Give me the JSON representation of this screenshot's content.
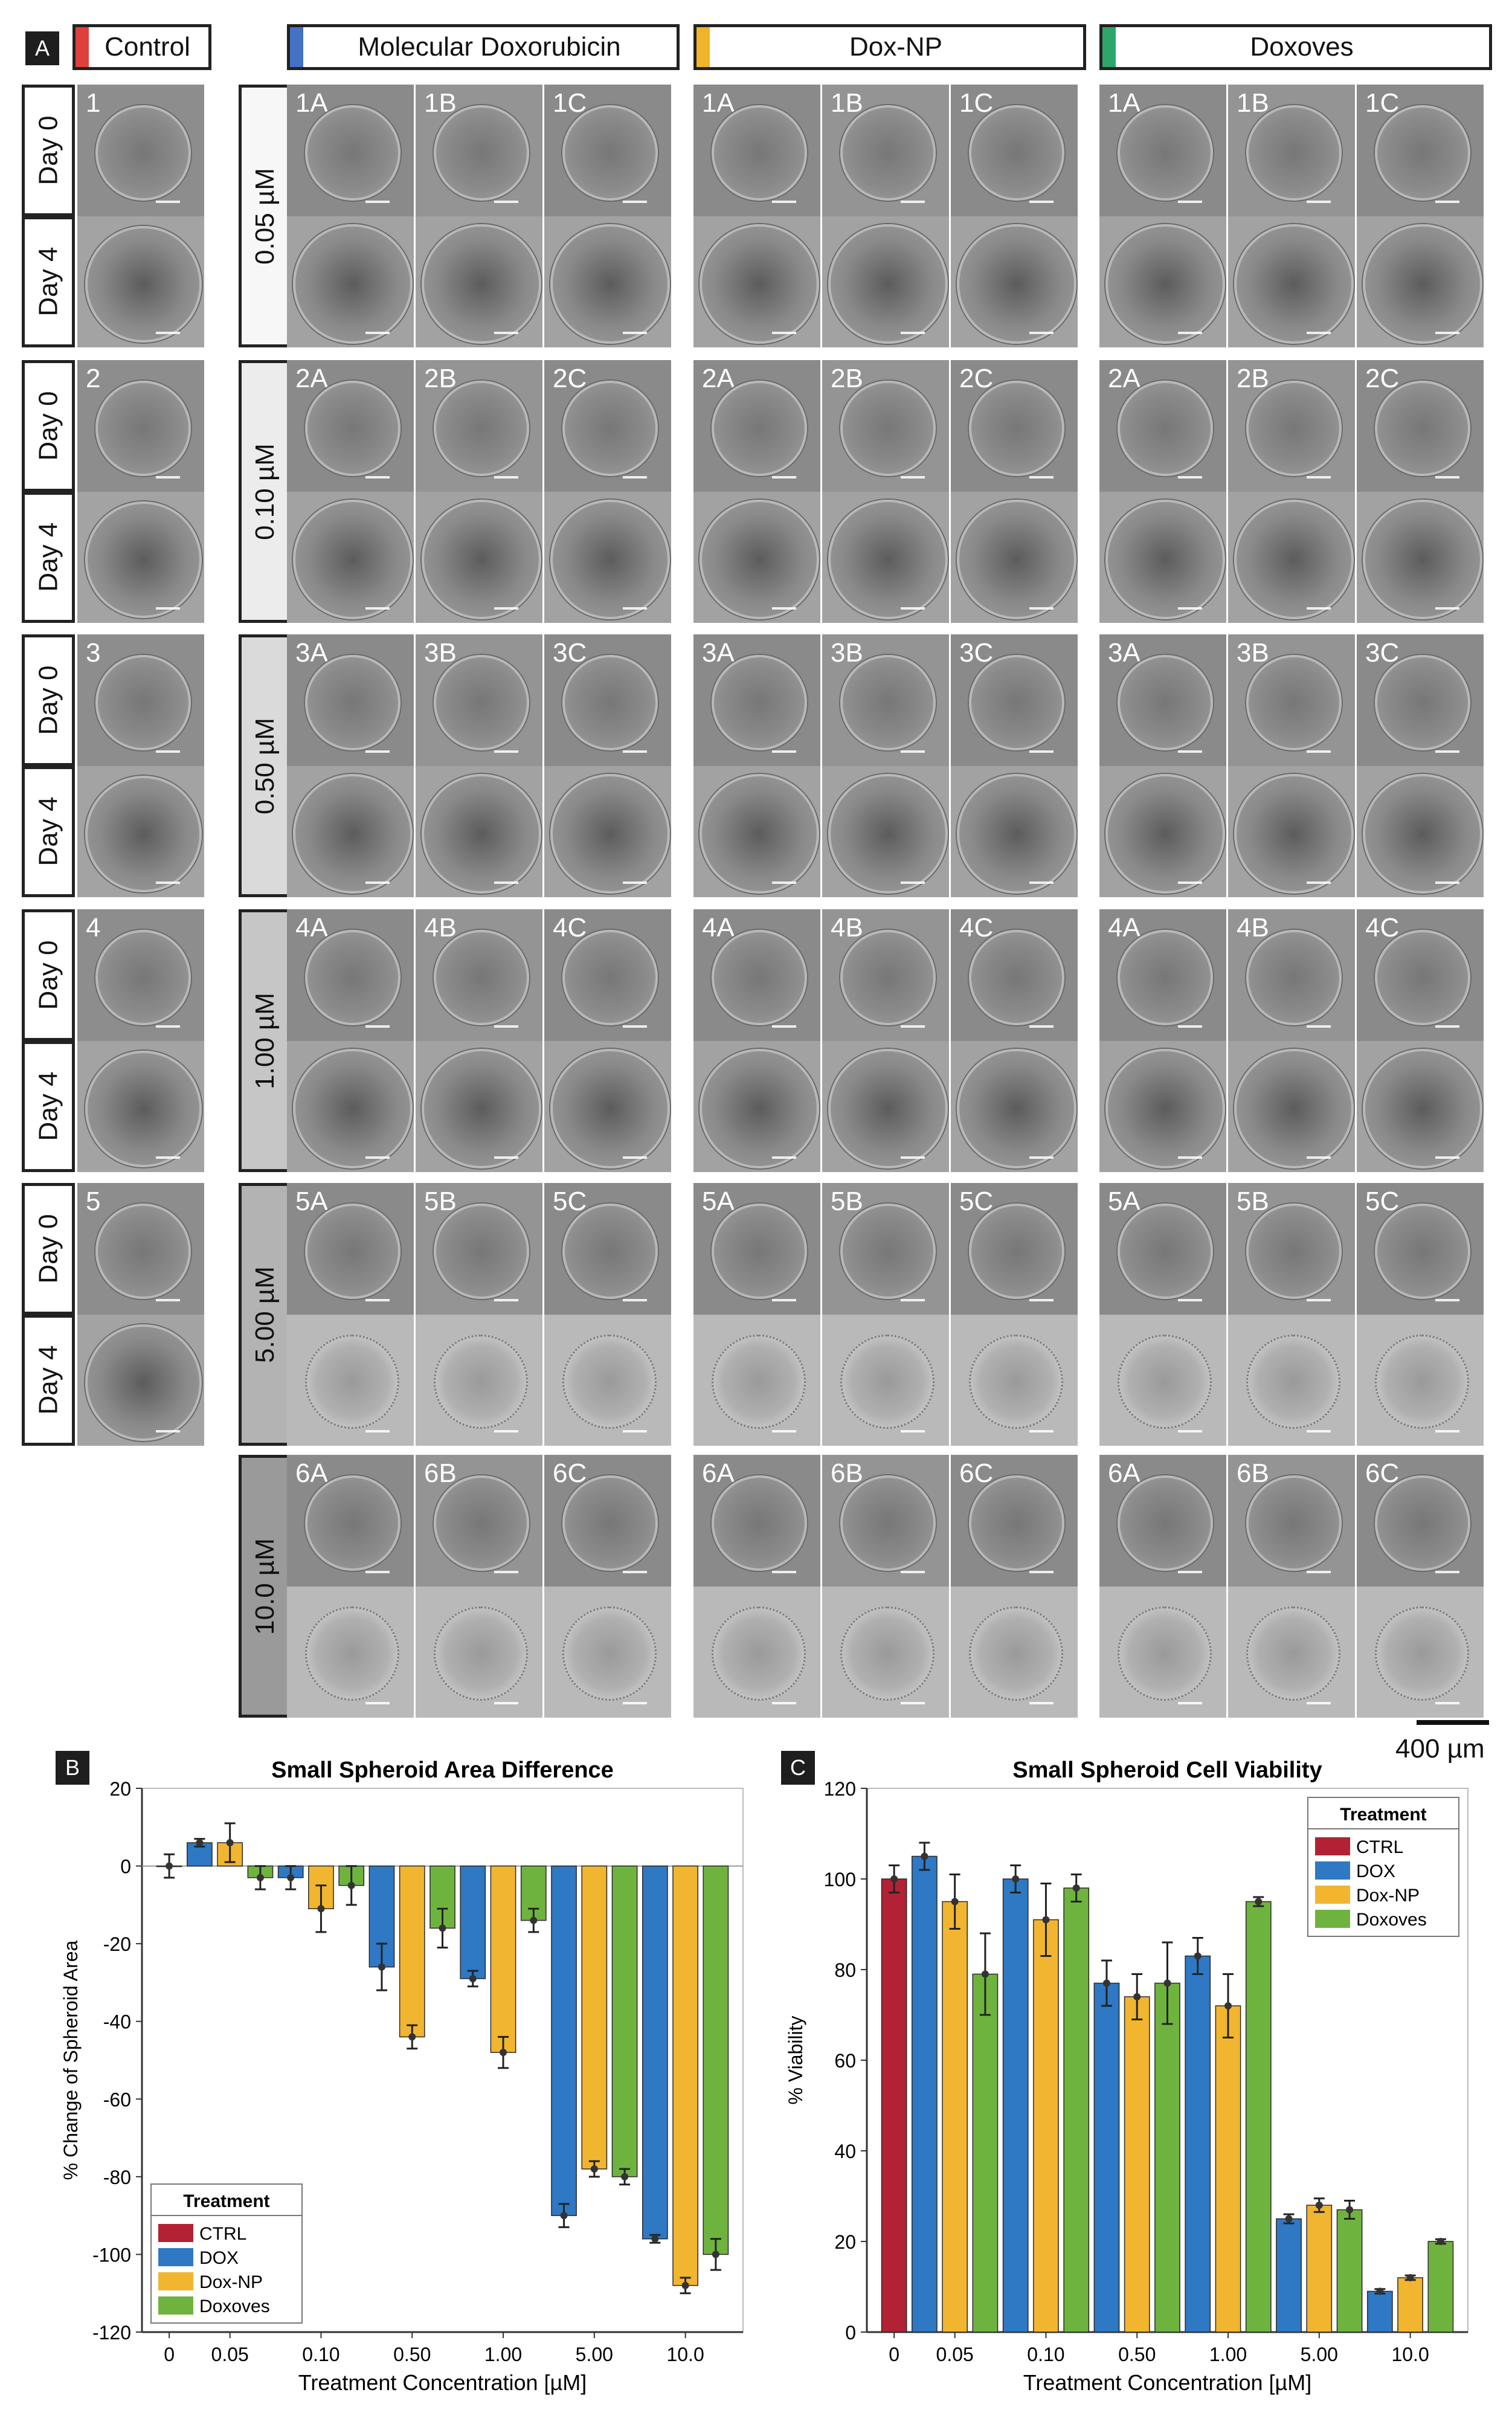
{
  "panelA": {
    "letter": "A",
    "control_header": "Control",
    "headers": [
      "Molecular Doxorubicin",
      "Dox-NP",
      "Doxoves"
    ],
    "header_colors": [
      "#4472c4",
      "#f0b429",
      "#2ea66b"
    ],
    "control_color": "#e0403c",
    "day_labels": [
      "Day 0",
      "Day 4"
    ],
    "control_rows": [
      "1",
      "2",
      "3",
      "4",
      "5"
    ],
    "concentrations": [
      "0.05 µM",
      "0.10 µM",
      "0.50 µM",
      "1.00 µM",
      "5.00 µM",
      "10.0 µM"
    ],
    "concentration_shades": [
      "#f7f7f7",
      "#ececec",
      "#dadada",
      "#c6c6c6",
      "#b3b3b3",
      "#9a9a9a"
    ],
    "tile_rows": [
      [
        "1A",
        "1B",
        "1C"
      ],
      [
        "2A",
        "2B",
        "2C"
      ],
      [
        "3A",
        "3B",
        "3C"
      ],
      [
        "4A",
        "4B",
        "4C"
      ],
      [
        "5A",
        "5B",
        "5C"
      ],
      [
        "6A",
        "6B",
        "6C"
      ]
    ],
    "scale_label": "400 µm"
  },
  "chartB": {
    "letter": "B",
    "chart_data": {
      "type": "bar",
      "title": "Small Spheroid Area Difference",
      "xlabel": "Treatment Concentration [µM]",
      "ylabel": "% Change of Spheroid Area",
      "ylim": [
        -120,
        20
      ],
      "yticks": [
        20,
        0,
        -20,
        -40,
        -60,
        -80,
        -100,
        -120
      ],
      "categories": [
        "0",
        "0.05",
        "0.10",
        "0.50",
        "1.00",
        "5.00",
        "10.0"
      ],
      "series": [
        {
          "name": "CTRL",
          "color": "#b22234",
          "values": [
            0,
            null,
            null,
            null,
            null,
            null,
            null
          ],
          "errors": [
            3,
            null,
            null,
            null,
            null,
            null,
            null
          ]
        },
        {
          "name": "DOX",
          "color": "#2e78c4",
          "values": [
            null,
            6,
            -3,
            -26,
            -29,
            -90,
            -96
          ],
          "errors": [
            null,
            1,
            3,
            6,
            2,
            3,
            1
          ]
        },
        {
          "name": "Dox-NP",
          "color": "#f2b530",
          "values": [
            null,
            6,
            -11,
            -44,
            -48,
            -78,
            -108
          ],
          "errors": [
            null,
            5,
            6,
            3,
            4,
            2,
            2
          ]
        },
        {
          "name": "Doxoves",
          "color": "#6fb33f",
          "values": [
            null,
            -3,
            -5,
            -16,
            -14,
            -80,
            -100
          ],
          "errors": [
            null,
            3,
            5,
            5,
            3,
            2,
            4
          ]
        }
      ],
      "legend_title": "Treatment",
      "legend_position": "bottom-left"
    }
  },
  "chartC": {
    "letter": "C",
    "chart_data": {
      "type": "bar",
      "title": "Small Spheroid Cell Viability",
      "xlabel": "Treatment Concentration [µM]",
      "ylabel": "% Viability",
      "ylim": [
        0,
        120
      ],
      "yticks": [
        120,
        100,
        80,
        60,
        40,
        20,
        0
      ],
      "categories": [
        "0",
        "0.05",
        "0.10",
        "0.50",
        "1.00",
        "5.00",
        "10.0"
      ],
      "series": [
        {
          "name": "CTRL",
          "color": "#b22234",
          "values": [
            100,
            null,
            null,
            null,
            null,
            null,
            null
          ],
          "errors": [
            3,
            null,
            null,
            null,
            null,
            null,
            null
          ]
        },
        {
          "name": "DOX",
          "color": "#2e78c4",
          "values": [
            null,
            105,
            100,
            77,
            83,
            25,
            9
          ],
          "errors": [
            null,
            3,
            3,
            5,
            4,
            1,
            0.5
          ]
        },
        {
          "name": "Dox-NP",
          "color": "#f2b530",
          "values": [
            null,
            95,
            91,
            74,
            72,
            28,
            12
          ],
          "errors": [
            null,
            6,
            8,
            5,
            7,
            1.5,
            0.5
          ]
        },
        {
          "name": "Doxoves",
          "color": "#6fb33f",
          "values": [
            null,
            79,
            98,
            77,
            95,
            27,
            20
          ],
          "errors": [
            null,
            9,
            3,
            9,
            1,
            2,
            0.5
          ]
        }
      ],
      "legend_title": "Treatment",
      "legend_position": "top-right"
    }
  }
}
